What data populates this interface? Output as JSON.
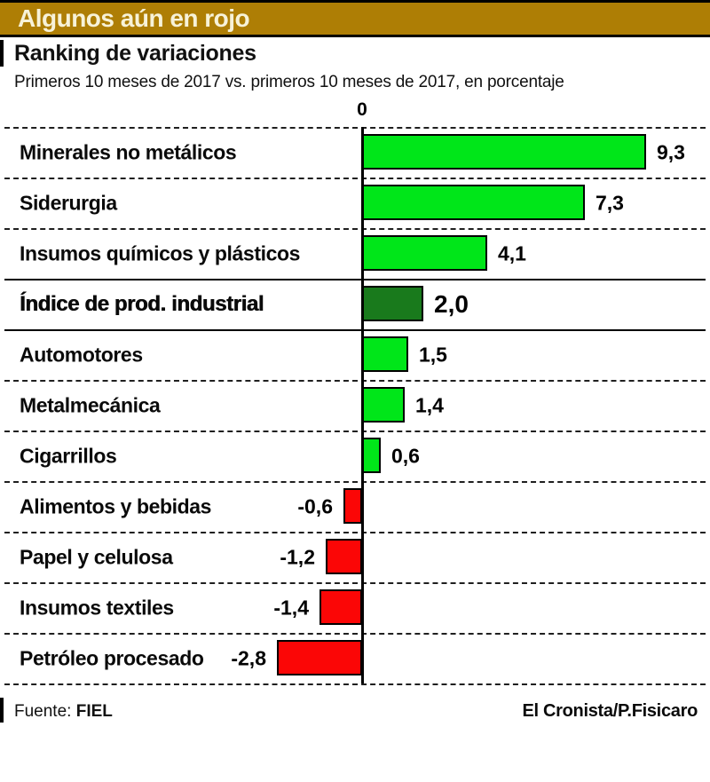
{
  "header": {
    "banner_title": "Algunos aún en rojo",
    "banner_bg_color": "#ae7e05",
    "banner_text_color": "#f7f2d8"
  },
  "title": "Ranking de variaciones",
  "subtitle": "Primeros 10 meses de 2017 vs. primeros 10 meses de 2017, en porcentaje",
  "chart_data": {
    "type": "bar",
    "orientation": "horizontal",
    "zero_tick_label": "0",
    "axis_range": [
      -3.5,
      11.4
    ],
    "grid": "dashed row separators, solid separators around emphasized row",
    "legend": "none",
    "categories": [
      "Minerales no metálicos",
      "Siderurgia",
      "Insumos químicos y plásticos",
      "Índice de prod. industrial",
      "Automotores",
      "Metalmecánica",
      "Cigarrillos",
      "Alimentos y bebidas",
      "Papel y celulosa",
      "Insumos textiles",
      "Petróleo procesado"
    ],
    "values": [
      9.3,
      7.3,
      4.1,
      2.0,
      1.5,
      1.4,
      0.6,
      -0.6,
      -1.2,
      -1.4,
      -2.8
    ],
    "value_labels": [
      "9,3",
      "7,3",
      "4,1",
      "2,0",
      "1,5",
      "1,4",
      "0,6",
      "-0,6",
      "-1,2",
      "-1,4",
      "-2,8"
    ],
    "emphasized_index": 3,
    "colors": {
      "positive": "#00e619",
      "negative": "#fb0606",
      "emphasis": "#197a1c",
      "bar_border": "#000000"
    }
  },
  "footer": {
    "source_label": "Fuente:",
    "source_value": "FIEL",
    "credit": "El Cronista/P.Fisicaro"
  }
}
